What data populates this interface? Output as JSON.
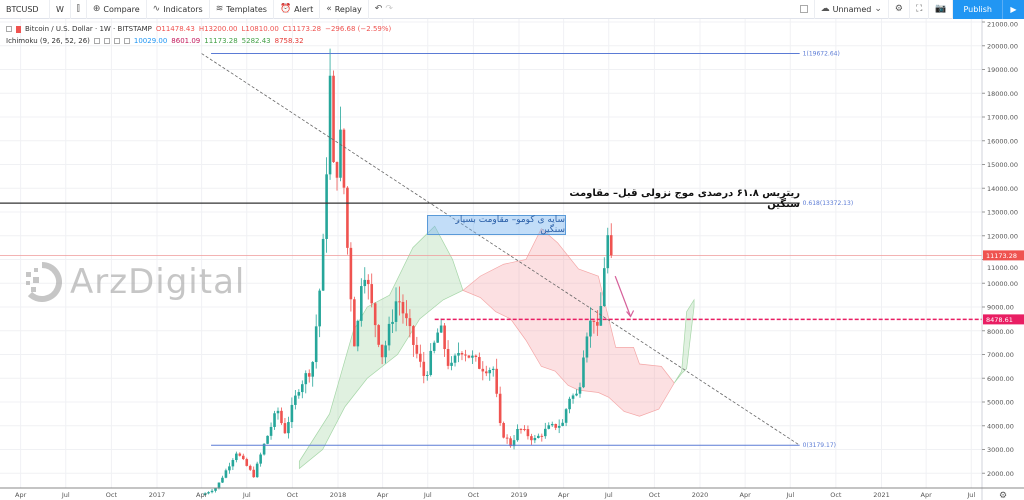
{
  "toolbar": {
    "symbol": "BTCUSD",
    "interval": "W",
    "compare": "Compare",
    "indicators": "Indicators",
    "templates": "Templates",
    "alert": "Alert",
    "replay": "Replay",
    "layout_name": "Unnamed",
    "publish": "Publish"
  },
  "legend": {
    "title": "Bitcoin / U.S. Dollar · 1W · BITSTAMP",
    "open": "O11478.43",
    "high": "H13200.00",
    "low": "L10810.00",
    "close": "C11173.28",
    "change": "−296.68 (−2.59%)",
    "indicator": "Ichimoku (9, 26, 52, 26)",
    "values": [
      "10029.00",
      "8601.09",
      "11173.28",
      "5282.43",
      "8758.32"
    ],
    "value_colors": [
      "#2196f3",
      "#c2185b",
      "#43a047",
      "#43a047",
      "#e53935"
    ]
  },
  "watermark": "ArzDigital",
  "annotations": {
    "fib_note": "ریتریس ۶۱.۸ درصدی موج نزولی قبل– مقاومت سنگین",
    "kumo_note": "سایه ی کومو– مقاومت بسیار سنگین"
  },
  "colors": {
    "up": "#26a69a",
    "down": "#ef5350",
    "accent": "#2196f3",
    "fib": "#5b7bd5",
    "support": "#e91e63"
  },
  "chart_data": {
    "type": "candlestick",
    "timeframe": "1W",
    "price_ticks": [
      21000,
      20000,
      19000,
      18000,
      17000,
      16000,
      15000,
      14000,
      13000,
      12000,
      11000,
      10000,
      9000,
      8000,
      7000,
      6000,
      5000,
      4000,
      3000,
      2000
    ],
    "time_ticks": [
      [
        "2016-04-01",
        "Apr"
      ],
      [
        "2016-07-01",
        "Jul"
      ],
      [
        "2016-10-01",
        "Oct"
      ],
      [
        "2017-01-01",
        "2017"
      ],
      [
        "2017-04-01",
        "Apr"
      ],
      [
        "2017-07-01",
        "Jul"
      ],
      [
        "2017-10-01",
        "Oct"
      ],
      [
        "2018-01-01",
        "2018"
      ],
      [
        "2018-04-01",
        "Apr"
      ],
      [
        "2018-07-01",
        "Jul"
      ],
      [
        "2018-10-01",
        "Oct"
      ],
      [
        "2019-01-01",
        "2019"
      ],
      [
        "2019-04-01",
        "Apr"
      ],
      [
        "2019-07-01",
        "Jul"
      ],
      [
        "2019-10-01",
        "Oct"
      ],
      [
        "2020-01-01",
        "2020"
      ],
      [
        "2020-04-01",
        "Apr"
      ],
      [
        "2020-07-01",
        "Jul"
      ],
      [
        "2020-10-01",
        "Oct"
      ],
      [
        "2021-01-01",
        "2021"
      ],
      [
        "2021-04-01",
        "Apr"
      ],
      [
        "2021-07-01",
        "Jul"
      ]
    ],
    "closes_approx": [
      [
        "2017-04-01",
        1080
      ],
      [
        "2017-05-01",
        1400
      ],
      [
        "2017-05-25",
        2300
      ],
      [
        "2017-06-10",
        2900
      ],
      [
        "2017-07-15",
        1900
      ],
      [
        "2017-08-05",
        3200
      ],
      [
        "2017-09-01",
        4700
      ],
      [
        "2017-09-15",
        3700
      ],
      [
        "2017-10-15",
        5700
      ],
      [
        "2017-11-10",
        6500
      ],
      [
        "2017-12-01",
        11000
      ],
      [
        "2017-12-17",
        19000
      ],
      [
        "2017-12-24",
        14000
      ],
      [
        "2018-01-07",
        16200
      ],
      [
        "2018-01-20",
        11500
      ],
      [
        "2018-02-05",
        7000
      ],
      [
        "2018-02-20",
        11000
      ],
      [
        "2018-03-10",
        9000
      ],
      [
        "2018-04-01",
        6900
      ],
      [
        "2018-05-01",
        9500
      ],
      [
        "2018-06-01",
        7500
      ],
      [
        "2018-06-25",
        6000
      ],
      [
        "2018-07-25",
        8200
      ],
      [
        "2018-08-15",
        6300
      ],
      [
        "2018-09-05",
        7300
      ],
      [
        "2018-10-15",
        6500
      ],
      [
        "2018-11-10",
        6400
      ],
      [
        "2018-11-25",
        3800
      ],
      [
        "2018-12-15",
        3200
      ],
      [
        "2019-01-01",
        3900
      ],
      [
        "2019-02-01",
        3400
      ],
      [
        "2019-03-01",
        3900
      ],
      [
        "2019-04-01",
        4100
      ],
      [
        "2019-04-10",
        5200
      ],
      [
        "2019-05-01",
        5300
      ],
      [
        "2019-05-15",
        7900
      ],
      [
        "2019-06-01",
        8600
      ],
      [
        "2019-06-10",
        7700
      ],
      [
        "2019-06-22",
        10800
      ],
      [
        "2019-06-29",
        11900
      ],
      [
        "2019-07-07",
        11173.28
      ]
    ],
    "kumo": [
      {
        "color": "green",
        "span_a": [
          [
            "2017-10-15",
            2500
          ],
          [
            "2017-12-15",
            4500
          ],
          [
            "2018-02-01",
            8000
          ],
          [
            "2018-03-01",
            9000
          ],
          [
            "2018-04-15",
            9500
          ],
          [
            "2018-06-01",
            11500
          ],
          [
            "2018-07-15",
            12400
          ],
          [
            "2018-08-20",
            11000
          ],
          [
            "2018-09-10",
            9700
          ]
        ],
        "span_b": [
          [
            "2017-10-15",
            2200
          ],
          [
            "2017-12-01",
            3000
          ],
          [
            "2018-01-15",
            4800
          ],
          [
            "2018-03-01",
            6000
          ],
          [
            "2018-05-01",
            7000
          ],
          [
            "2018-06-15",
            8500
          ],
          [
            "2018-08-01",
            9300
          ],
          [
            "2018-09-10",
            9700
          ]
        ]
      },
      {
        "color": "red",
        "span_a": [
          [
            "2018-09-10",
            9700
          ],
          [
            "2018-10-15",
            9400
          ],
          [
            "2018-11-15",
            8800
          ],
          [
            "2018-12-15",
            8500
          ],
          [
            "2019-01-15",
            7600
          ],
          [
            "2019-02-15",
            6500
          ],
          [
            "2019-03-15",
            6300
          ],
          [
            "2019-04-10",
            5700
          ],
          [
            "2019-05-01",
            5500
          ],
          [
            "2019-06-10",
            5400
          ],
          [
            "2019-07-01",
            5200
          ],
          [
            "2019-08-01",
            4600
          ],
          [
            "2019-09-01",
            4400
          ],
          [
            "2019-10-10",
            4700
          ],
          [
            "2019-11-10",
            5800
          ]
        ],
        "span_b": [
          [
            "2018-09-10",
            9700
          ],
          [
            "2018-10-15",
            10300
          ],
          [
            "2018-12-01",
            10800
          ],
          [
            "2019-01-15",
            11000
          ],
          [
            "2019-02-15",
            12300
          ],
          [
            "2019-03-20",
            11700
          ],
          [
            "2019-05-01",
            10600
          ],
          [
            "2019-06-10",
            10300
          ],
          [
            "2019-07-15",
            7300
          ],
          [
            "2019-08-20",
            7300
          ],
          [
            "2019-09-01",
            6600
          ],
          [
            "2019-10-15",
            6500
          ],
          [
            "2019-11-10",
            5800
          ]
        ]
      },
      {
        "color": "green",
        "span_a": [
          [
            "2019-11-10",
            5800
          ],
          [
            "2019-11-25",
            6300
          ],
          [
            "2019-12-05",
            8800
          ],
          [
            "2019-12-20",
            9300
          ]
        ],
        "span_b": [
          [
            "2019-11-10",
            5800
          ],
          [
            "2019-11-25",
            6200
          ],
          [
            "2019-12-05",
            6400
          ],
          [
            "2019-12-20",
            9000
          ]
        ]
      }
    ],
    "fib_levels": [
      {
        "label": "1(19672.64)",
        "price": 19672.64
      },
      {
        "label": "0.618(13372.13)",
        "price": 13372.13
      },
      {
        "label": "0(3179.17)",
        "price": 3179.17
      }
    ],
    "trendline": [
      [
        "2017-04-01",
        19672.64
      ],
      [
        "2020-07-20",
        3179.17
      ]
    ],
    "support_line": {
      "price": 8478.61,
      "label": "8478.61",
      "from": "2018-07-15"
    },
    "last_price": {
      "price": 11173.28,
      "label": "11173.28"
    },
    "arrow": [
      [
        "2019-07-14",
        10300
      ],
      [
        "2019-08-14",
        8600
      ]
    ]
  }
}
